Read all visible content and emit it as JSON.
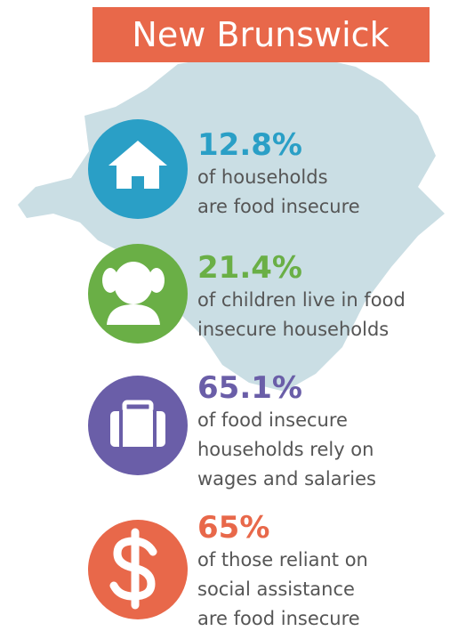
{
  "header": {
    "title": "New Brunswick"
  },
  "items": [
    {
      "stat": "12.8%",
      "lines": [
        "of households",
        "are food insecure"
      ],
      "color": "#2a9fc6"
    },
    {
      "stat": "21.4%",
      "lines": [
        "of children live in food",
        "insecure households"
      ],
      "color": "#6aaf46"
    },
    {
      "stat": "65.1%",
      "lines": [
        "of food insecure",
        "households rely on",
        "wages and salaries"
      ],
      "color": "#6a5ea8"
    },
    {
      "stat": "65%",
      "lines": [
        "of those reliant on",
        "social assistance",
        "are food insecure"
      ],
      "color": "#e8684a"
    }
  ]
}
